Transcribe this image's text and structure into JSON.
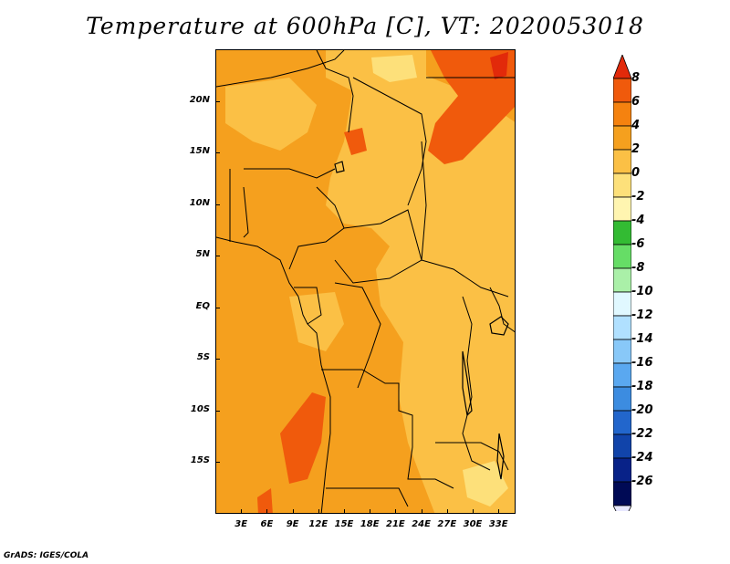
{
  "title": "Temperature at 600hPa [C], VT: 2020053018",
  "footer": "GrADS: IGES/COLA",
  "map": {
    "lon_range": [
      0,
      35
    ],
    "lat_range": [
      -20,
      25
    ],
    "base_fill": "#f5a01e",
    "lat_ticks": [
      {
        "value": 20,
        "label": "20N"
      },
      {
        "value": 15,
        "label": "15N"
      },
      {
        "value": 10,
        "label": "10N"
      },
      {
        "value": 5,
        "label": "5N"
      },
      {
        "value": 0,
        "label": "EQ"
      },
      {
        "value": -5,
        "label": "5S"
      },
      {
        "value": -10,
        "label": "10S"
      },
      {
        "value": -15,
        "label": "15S"
      }
    ],
    "lon_ticks": [
      {
        "value": 3,
        "label": "3E"
      },
      {
        "value": 6,
        "label": "6E"
      },
      {
        "value": 9,
        "label": "9E"
      },
      {
        "value": 12,
        "label": "12E"
      },
      {
        "value": 15,
        "label": "15E"
      },
      {
        "value": 18,
        "label": "18E"
      },
      {
        "value": 21,
        "label": "21E"
      },
      {
        "value": 24,
        "label": "24E"
      },
      {
        "value": 27,
        "label": "27E"
      },
      {
        "value": 30,
        "label": "30E"
      },
      {
        "value": 33,
        "label": "33E"
      }
    ]
  },
  "colorbar": {
    "levels": [
      "8",
      "6",
      "4",
      "2",
      "0",
      "-2",
      "-4",
      "-6",
      "-8",
      "-10",
      "-12",
      "-14",
      "-16",
      "-18",
      "-20",
      "-22",
      "-24",
      "-26"
    ],
    "colors": [
      "#e22a0a",
      "#f05a0c",
      "#f5820f",
      "#f5a01e",
      "#fbc045",
      "#fde07a",
      "#fff5b0",
      "#33bb33",
      "#66dd66",
      "#aaf0a8",
      "#e0f8ff",
      "#b0e0ff",
      "#88c8f8",
      "#5aa8f0",
      "#3c8ce0",
      "#2266cc",
      "#1144aa",
      "#082288",
      "#000a55",
      "#e8e8ff"
    ]
  }
}
